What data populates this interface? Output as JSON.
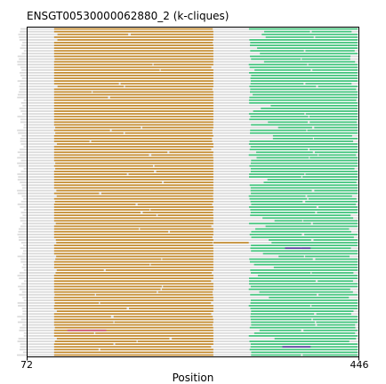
{
  "chart_data": {
    "type": "alignment",
    "title": "ENSGT00530000062880_2 (k-cliques)",
    "xlabel": "Position",
    "ylabel": "",
    "xlim": [
      72,
      446
    ],
    "xticks": [
      "72",
      "446"
    ],
    "grid": false,
    "legend": "none",
    "colors": {
      "background_bar": "#d9d9d9",
      "gold": "#c48a2c",
      "green": "#3ec47a",
      "pink": "#c8506e",
      "purple": "#5a3fa0"
    },
    "track_count": 120,
    "blocks": [
      {
        "name": "gold",
        "start": 102,
        "end": 282
      },
      {
        "name": "green",
        "start": 322,
        "end": 445
      }
    ],
    "highlights": [
      {
        "name": "pink",
        "row": 110,
        "start": 117,
        "end": 161
      },
      {
        "name": "purple",
        "row": 80,
        "start": 363,
        "end": 392
      },
      {
        "name": "purple",
        "row": 116,
        "start": 360,
        "end": 392
      },
      {
        "name": "gold",
        "row": 78,
        "start": 282,
        "end": 322
      }
    ]
  }
}
